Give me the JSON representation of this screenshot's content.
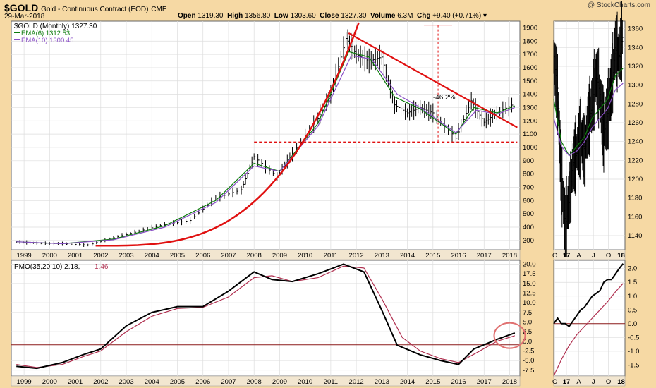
{
  "header": {
    "symbol": "$GOLD",
    "description": "Gold - Continuous Contract (EOD)",
    "exchange": "CME",
    "date": "29-Mar-2018",
    "open_label": "Open",
    "open": "1319.30",
    "high_label": "High",
    "high": "1356.80",
    "low_label": "Low",
    "low": "1303.60",
    "close_label": "Close",
    "close": "1327.30",
    "volume_label": "Volume",
    "volume": "6.3M",
    "chg_label": "Chg",
    "chg": "+9.40 (+0.71%)",
    "watermark": "@ StockCharts.com"
  },
  "colors": {
    "background": "#f6d9a4",
    "panel": "#ffffff",
    "price": "#000000",
    "ema6": "#0a7a0a",
    "ema10": "#8a4fc6",
    "trend": "#e01010",
    "signal": "#b03050",
    "zero": "#8b1a1a"
  },
  "legend": {
    "price": "$GOLD (Monthly) 1327.30",
    "ema6": "EMA(6) 1312.53",
    "ema10": "EMA(10) 1300.45",
    "pmo": "PMO(35,20,10) 2.18,",
    "pmo_signal": "1.46"
  },
  "chart_data": [
    {
      "type": "line",
      "panel": "price-monthly",
      "x_ticks": [
        "1999",
        "2000",
        "2001",
        "2002",
        "2003",
        "2004",
        "2005",
        "2006",
        "2007",
        "2008",
        "2009",
        "2010",
        "2011",
        "2012",
        "2013",
        "2014",
        "2015",
        "2016",
        "2017",
        "2018"
      ],
      "y_ticks": [
        300,
        400,
        500,
        600,
        700,
        800,
        900,
        1000,
        1100,
        1200,
        1300,
        1400,
        1500,
        1600,
        1700,
        1800,
        1900
      ],
      "ylim": [
        230,
        1950
      ],
      "series": [
        {
          "name": "$GOLD (Monthly)",
          "x": [
            1998.7,
            1999.5,
            2000.5,
            2001.5,
            2002.5,
            2003.5,
            2004.5,
            2005.5,
            2006.5,
            2007.5,
            2008.0,
            2008.9,
            2009.5,
            2010.5,
            2011.0,
            2011.6,
            2012.0,
            2012.5,
            2013.0,
            2013.5,
            2014.0,
            2014.5,
            2015.0,
            2015.9,
            2016.5,
            2017.0,
            2017.5,
            2018.2
          ],
          "values": [
            290,
            280,
            275,
            265,
            320,
            370,
            420,
            450,
            620,
            680,
            930,
            780,
            950,
            1220,
            1400,
            1820,
            1700,
            1650,
            1680,
            1320,
            1260,
            1300,
            1260,
            1070,
            1350,
            1190,
            1260,
            1330
          ]
        },
        {
          "name": "EMA(6)",
          "x": [
            1998.7,
            2000.5,
            2002.5,
            2004.5,
            2006.5,
            2008.0,
            2009.0,
            2010.5,
            2011.7,
            2012.5,
            2013.5,
            2014.5,
            2015.9,
            2016.6,
            2017.5,
            2018.2
          ],
          "values": [
            290,
            275,
            310,
            410,
            600,
            880,
            820,
            1180,
            1720,
            1680,
            1380,
            1290,
            1100,
            1300,
            1260,
            1312
          ]
        },
        {
          "name": "EMA(10)",
          "x": [
            1998.7,
            2000.5,
            2002.5,
            2004.5,
            2006.5,
            2008.0,
            2009.0,
            2010.5,
            2011.8,
            2012.6,
            2013.6,
            2014.5,
            2015.9,
            2016.7,
            2017.5,
            2018.2
          ],
          "values": [
            290,
            275,
            305,
            400,
            585,
            860,
            820,
            1160,
            1690,
            1665,
            1400,
            1300,
            1110,
            1280,
            1250,
            1300
          ]
        }
      ],
      "annotations": [
        {
          "type": "line",
          "color": "red",
          "from": [
            2011.7,
            1860
          ],
          "to": [
            2018.3,
            1150
          ]
        },
        {
          "type": "dashed-hline",
          "color": "red",
          "value": 1040,
          "from": 2008.0,
          "to": 2018.3
        },
        {
          "type": "dashed-vline",
          "color": "red",
          "x": 2015.2,
          "from": 1920,
          "to": 1040
        },
        {
          "type": "text",
          "text": "-46.2%",
          "x": 2015.0,
          "y": 1360
        }
      ]
    },
    {
      "type": "line",
      "panel": "price-daily",
      "x_ticks": [
        "O",
        "17",
        "A",
        "J",
        "O",
        "18"
      ],
      "y_ticks": [
        1140,
        1160,
        1180,
        1200,
        1220,
        1240,
        1260,
        1280,
        1300,
        1320,
        1340,
        1360
      ],
      "ylim": [
        1125,
        1368
      ],
      "series": [
        {
          "name": "$GOLD (Daily)",
          "x": [
            0,
            1,
            2,
            3,
            4,
            5,
            6,
            7,
            8,
            9,
            10,
            11,
            12,
            13,
            14,
            15,
            16,
            17,
            18
          ],
          "values": [
            1330,
            1290,
            1200,
            1150,
            1180,
            1215,
            1230,
            1245,
            1230,
            1260,
            1280,
            1310,
            1290,
            1250,
            1270,
            1300,
            1340,
            1330,
            1355
          ]
        },
        {
          "name": "EMA(6)",
          "x": [
            0,
            2,
            4,
            6,
            8,
            10,
            12,
            14,
            16,
            18
          ],
          "values": [
            1285,
            1240,
            1225,
            1235,
            1245,
            1265,
            1275,
            1285,
            1310,
            1318
          ]
        },
        {
          "name": "EMA(10)",
          "x": [
            0,
            2,
            4,
            6,
            8,
            10,
            12,
            14,
            16,
            18
          ],
          "values": [
            1265,
            1235,
            1225,
            1230,
            1240,
            1255,
            1265,
            1275,
            1295,
            1302
          ]
        }
      ]
    },
    {
      "type": "line",
      "panel": "pmo-monthly",
      "x_ticks": [
        "1999",
        "2000",
        "2001",
        "2002",
        "2003",
        "2004",
        "2005",
        "2006",
        "2007",
        "2008",
        "2009",
        "2010",
        "2011",
        "2012",
        "2013",
        "2014",
        "2015",
        "2016",
        "2017",
        "2018"
      ],
      "y_ticks": [
        -7.5,
        -5.0,
        -2.5,
        0.0,
        2.5,
        5.0,
        7.5,
        10.0,
        12.5,
        15.0,
        17.5,
        20.0
      ],
      "ylim": [
        -9,
        21
      ],
      "series": [
        {
          "name": "PMO(35,20,10)",
          "x": [
            1998.7,
            1999.5,
            2000.5,
            2001.3,
            2002.0,
            2003.0,
            2004.0,
            2005.0,
            2006.0,
            2007.0,
            2008.0,
            2008.7,
            2009.5,
            2010.5,
            2011.5,
            2012.3,
            2013.0,
            2013.6,
            2014.5,
            2015.3,
            2016.0,
            2016.6,
            2017.5,
            2018.2
          ],
          "values": [
            -6.5,
            -7.0,
            -5.5,
            -3.5,
            -2.0,
            4.0,
            7.5,
            9.0,
            9.0,
            13.0,
            18.0,
            16.0,
            15.5,
            17.5,
            20.0,
            18.0,
            8.0,
            -1.0,
            -3.5,
            -5.0,
            -6.0,
            -2.0,
            0.5,
            2.18
          ]
        },
        {
          "name": "Signal",
          "x": [
            1998.7,
            1999.5,
            2000.5,
            2001.3,
            2002.0,
            2003.0,
            2004.0,
            2005.0,
            2006.0,
            2007.0,
            2008.0,
            2008.7,
            2009.5,
            2010.5,
            2011.5,
            2012.3,
            2013.0,
            2013.8,
            2014.5,
            2015.3,
            2016.0,
            2016.7,
            2017.5,
            2018.2
          ],
          "values": [
            -6.0,
            -6.8,
            -6.0,
            -4.0,
            -2.5,
            2.5,
            6.5,
            8.5,
            8.8,
            11.5,
            16.5,
            17.0,
            15.5,
            16.5,
            19.5,
            19.0,
            11.0,
            1.0,
            -2.5,
            -4.5,
            -5.5,
            -3.0,
            0.0,
            1.46
          ]
        }
      ],
      "annotations": [
        {
          "type": "hline",
          "value": -0.9
        },
        {
          "type": "circle",
          "x": 2018.0,
          "y": 1.5
        }
      ]
    },
    {
      "type": "line",
      "panel": "pmo-daily",
      "x_ticks": [
        "O",
        "17",
        "A",
        "J",
        "O",
        "18"
      ],
      "y_ticks": [
        -1.5,
        -1.0,
        -0.5,
        0.0,
        0.5,
        1.0,
        1.5,
        2.0
      ],
      "ylim": [
        -1.9,
        2.3
      ],
      "series": [
        {
          "name": "PMO",
          "x": [
            0,
            1,
            2,
            3,
            4,
            5,
            6,
            7,
            8,
            9,
            10,
            11,
            12,
            13,
            14,
            15,
            16,
            17,
            18
          ],
          "values": [
            0.0,
            0.2,
            0.0,
            0.0,
            -0.1,
            0.1,
            0.3,
            0.5,
            0.6,
            0.8,
            1.0,
            1.1,
            1.2,
            1.5,
            1.6,
            1.6,
            1.8,
            2.0,
            2.18
          ]
        },
        {
          "name": "Signal",
          "x": [
            0,
            2,
            4,
            6,
            8,
            10,
            12,
            14,
            16,
            18
          ],
          "values": [
            -1.9,
            -1.3,
            -0.8,
            -0.4,
            -0.1,
            0.2,
            0.5,
            0.8,
            1.15,
            1.46
          ]
        }
      ],
      "annotations": [
        {
          "type": "hline",
          "value": 0.0
        }
      ]
    }
  ]
}
